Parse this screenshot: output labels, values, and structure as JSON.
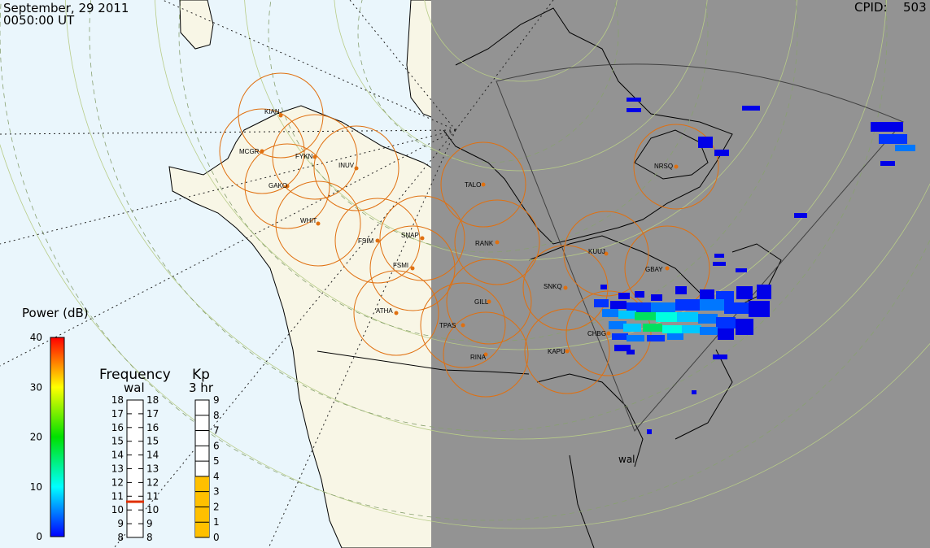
{
  "header": {
    "date": "September, 29 2011",
    "time": "0050:00 UT",
    "cpid_label": "CPID:",
    "cpid_value": "503"
  },
  "map": {
    "ocean_color": "#eaf6fc",
    "land_color": "#f8f6e6",
    "night_color": "#939393",
    "fov_radar_label": "wal",
    "stations": [
      {
        "code": "KIAN"
      },
      {
        "code": "MCGR"
      },
      {
        "code": "FYKN"
      },
      {
        "code": "INUV"
      },
      {
        "code": "GAKO"
      },
      {
        "code": "WHIT"
      },
      {
        "code": "FSIM"
      },
      {
        "code": "SNAP"
      },
      {
        "code": "FSMI"
      },
      {
        "code": "ATHA"
      },
      {
        "code": "TALO"
      },
      {
        "code": "RANK"
      },
      {
        "code": "GILL"
      },
      {
        "code": "TPAS"
      },
      {
        "code": "RINA"
      },
      {
        "code": "SNKQ"
      },
      {
        "code": "KAPU"
      },
      {
        "code": "CHBG"
      },
      {
        "code": "KUUJ"
      },
      {
        "code": "GBAY"
      },
      {
        "code": "NRSQ"
      }
    ]
  },
  "power_legend": {
    "title": "Power (dB)",
    "ticks": [
      "40",
      "30",
      "20",
      "10",
      "0"
    ],
    "colors": [
      "#ff0000",
      "#ffff00",
      "#00e000",
      "#00ffff",
      "#0000ff"
    ]
  },
  "frequency_legend": {
    "title": "Frequency",
    "subtitle": "wal",
    "ticks_left": [
      "18",
      "17",
      "16",
      "15",
      "14",
      "13",
      "12",
      "11",
      "10",
      "9",
      "8"
    ],
    "ticks_right": [
      "18",
      "17",
      "16",
      "15",
      "14",
      "13",
      "12",
      "11",
      "10",
      "9",
      "8"
    ],
    "value_mhz": 10.6,
    "marker_color": "#e03000"
  },
  "kp_legend": {
    "title": "Kp",
    "subtitle": "3 hr",
    "ticks": [
      "9",
      "8",
      "7",
      "6",
      "5",
      "4",
      "3",
      "2",
      "1",
      "0"
    ],
    "value": 4,
    "fill_color": "#ffc000"
  }
}
